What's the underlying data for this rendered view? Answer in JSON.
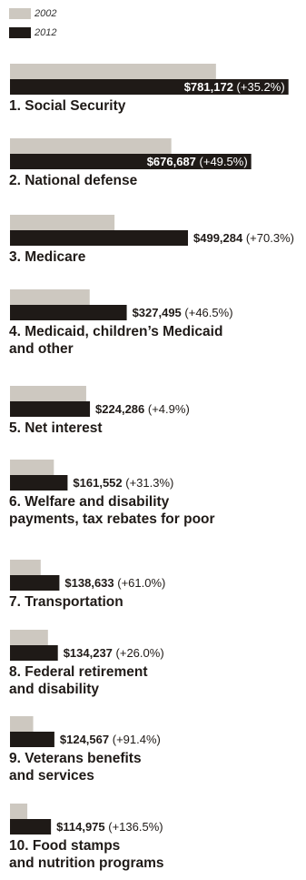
{
  "chart_data": {
    "type": "bar",
    "orientation": "horizontal",
    "series": [
      {
        "name": "2002",
        "color": "#cdc8c0",
        "values": [
          577818,
          452582,
          293282,
          223546,
          213804,
          123058,
          86103,
          106505,
          65063,
          48618
        ]
      },
      {
        "name": "2012",
        "color": "#1f1a17",
        "values": [
          781172,
          676687,
          499284,
          327495,
          224286,
          161552,
          138633,
          134237,
          124567,
          114975
        ]
      }
    ],
    "categories": [
      [
        "1. Social Security"
      ],
      [
        "2. National defense"
      ],
      [
        "3. Medicare"
      ],
      [
        "4. Medicaid, children’s Medicaid",
        "and other"
      ],
      [
        "5. Net interest"
      ],
      [
        "6. Welfare and disability",
        "payments, tax rebates for poor"
      ],
      [
        "7. Transportation"
      ],
      [
        "8. Federal retirement",
        "and disability"
      ],
      [
        "9. Veterans benefits",
        "and services"
      ],
      [
        "10. Food stamps",
        "and nutrition programs"
      ]
    ],
    "value_labels": [
      "$781,172",
      "$676,687",
      "$499,284",
      "$327,495",
      "$224,286",
      "$161,552",
      "$138,633",
      "$134,237",
      "$124,567",
      "$114,975"
    ],
    "change_labels": [
      "(+35.2%)",
      "(+49.5%)",
      "(+70.3%)",
      "(+46.5%)",
      "(+4.9%)",
      "(+31.3%)",
      "(+61.0%)",
      "(+26.0%)",
      "(+91.4%)",
      "(+136.5%)"
    ],
    "legend_position": "top-left",
    "xlim": [
      0,
      810000
    ]
  }
}
